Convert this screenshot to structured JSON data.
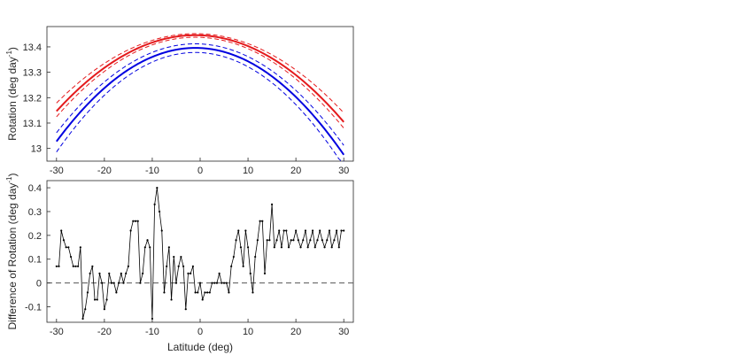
{
  "chart_data": [
    {
      "type": "line",
      "ylabel": "Rotation (deg day",
      "ylabel_sup": "-1",
      "ylabel_close": ")",
      "xlim": [
        -32,
        32
      ],
      "ylim": [
        12.95,
        13.48
      ],
      "xticks": [
        -30,
        -20,
        -10,
        0,
        10,
        20,
        30
      ],
      "xtick_labels": [
        "-30",
        "-20",
        "-10",
        "0",
        "10",
        "20",
        "30"
      ],
      "yticks": [
        13,
        13.1,
        13.2,
        13.3,
        13.4
      ],
      "ytick_labels": [
        "13",
        "13.1",
        "13.2",
        "13.3",
        "13.4"
      ],
      "grid": false,
      "series": [
        {
          "color": "#e41a1c",
          "style": "solid",
          "width": 2,
          "peak_x": -1,
          "peak_y": 13.446,
          "y_at_30": 13.104
        },
        {
          "color": "#e41a1c",
          "style": "dashed",
          "width": 1,
          "peak_x": -1,
          "peak_y": 13.452,
          "y_at_30": 13.14
        },
        {
          "color": "#e41a1c",
          "style": "dashed",
          "width": 1,
          "peak_x": -1,
          "peak_y": 13.438,
          "y_at_30": 13.08
        },
        {
          "color": "#0000e0",
          "style": "solid",
          "width": 2,
          "peak_x": -1,
          "peak_y": 13.396,
          "y_at_30": 12.975
        },
        {
          "color": "#0000e0",
          "style": "dashed",
          "width": 1,
          "peak_x": -1,
          "peak_y": 13.412,
          "y_at_30": 13.012
        },
        {
          "color": "#0000e0",
          "style": "dashed",
          "width": 1,
          "peak_x": -1,
          "peak_y": 13.378,
          "y_at_30": 12.93
        }
      ]
    },
    {
      "type": "line",
      "xlabel": "Latitude (deg)",
      "ylabel": "Difference of Rotation (deg day",
      "ylabel_sup": "-1",
      "ylabel_close": ")",
      "xlim": [
        -32,
        32
      ],
      "ylim": [
        -0.165,
        0.43
      ],
      "xticks": [
        -30,
        -20,
        -10,
        0,
        10,
        20,
        30
      ],
      "xtick_labels": [
        "-30",
        "-20",
        "-10",
        "0",
        "10",
        "20",
        "30"
      ],
      "yticks": [
        -0.1,
        0,
        0.1,
        0.2,
        0.3,
        0.4
      ],
      "ytick_labels": [
        "-0.1",
        "0",
        "0.1",
        "0.2",
        "0.3",
        "0.4"
      ],
      "reference_line": 0,
      "grid": false,
      "x": [
        -30,
        -29.5,
        -29,
        -28.5,
        -28,
        -27.5,
        -27,
        -26.5,
        -26,
        -25.5,
        -25,
        -24.5,
        -24,
        -23.5,
        -23,
        -22.5,
        -22,
        -21.5,
        -21,
        -20.5,
        -20,
        -19.5,
        -19,
        -18.5,
        -18,
        -17.5,
        -17,
        -16.5,
        -16,
        -15.5,
        -15,
        -14.5,
        -14,
        -13.5,
        -13,
        -12.5,
        -12,
        -11.5,
        -11,
        -10.5,
        -10,
        -9.5,
        -9,
        -8.5,
        -8,
        -7.5,
        -7,
        -6.5,
        -6,
        -5.5,
        -5,
        -4.5,
        -4,
        -3.5,
        -3,
        -2.5,
        -2,
        -1.5,
        -1,
        -0.5,
        0,
        0.5,
        1,
        1.5,
        2,
        2.5,
        3,
        3.5,
        4,
        4.5,
        5,
        5.5,
        6,
        6.5,
        7,
        7.5,
        8,
        8.5,
        9,
        9.5,
        10,
        10.5,
        11,
        11.5,
        12,
        12.5,
        13,
        13.5,
        14,
        14.5,
        15,
        15.5,
        16,
        16.5,
        17,
        17.5,
        18,
        18.5,
        19,
        19.5,
        20,
        20.5,
        21,
        21.5,
        22,
        22.5,
        23,
        23.5,
        24,
        24.5,
        25,
        25.5,
        26,
        26.5,
        27,
        27.5,
        28,
        28.5,
        29,
        29.5,
        30
      ],
      "y": [
        0.07,
        0.07,
        0.22,
        0.18,
        0.15,
        0.15,
        0.11,
        0.07,
        0.07,
        0.07,
        0.15,
        -0.15,
        -0.11,
        -0.04,
        0.04,
        0.07,
        -0.07,
        -0.07,
        0.04,
        0.0,
        -0.11,
        -0.07,
        0.04,
        0.0,
        0.0,
        -0.04,
        0.0,
        0.04,
        0.0,
        0.04,
        0.07,
        0.22,
        0.26,
        0.26,
        0.26,
        0.0,
        0.04,
        0.15,
        0.18,
        0.15,
        -0.15,
        0.33,
        0.4,
        0.3,
        0.22,
        -0.04,
        0.07,
        0.15,
        -0.07,
        0.11,
        0.0,
        0.07,
        0.11,
        0.07,
        -0.11,
        0.04,
        0.04,
        0.07,
        -0.04,
        -0.04,
        0.0,
        -0.07,
        -0.04,
        -0.04,
        -0.04,
        0.0,
        0.0,
        0.0,
        0.04,
        0.0,
        0.0,
        0.0,
        -0.04,
        0.07,
        0.11,
        0.18,
        0.22,
        0.15,
        0.07,
        0.22,
        0.15,
        0.04,
        -0.04,
        0.11,
        0.18,
        0.26,
        0.26,
        0.04,
        0.18,
        0.18,
        0.33,
        0.15,
        0.18,
        0.22,
        0.15,
        0.22,
        0.22,
        0.15,
        0.18,
        0.18,
        0.22,
        0.18,
        0.15,
        0.18,
        0.22,
        0.15,
        0.18,
        0.22,
        0.15,
        0.18,
        0.22,
        0.18,
        0.15,
        0.18,
        0.22,
        0.15,
        0.18,
        0.22,
        0.15,
        0.22,
        0.22
      ]
    }
  ]
}
